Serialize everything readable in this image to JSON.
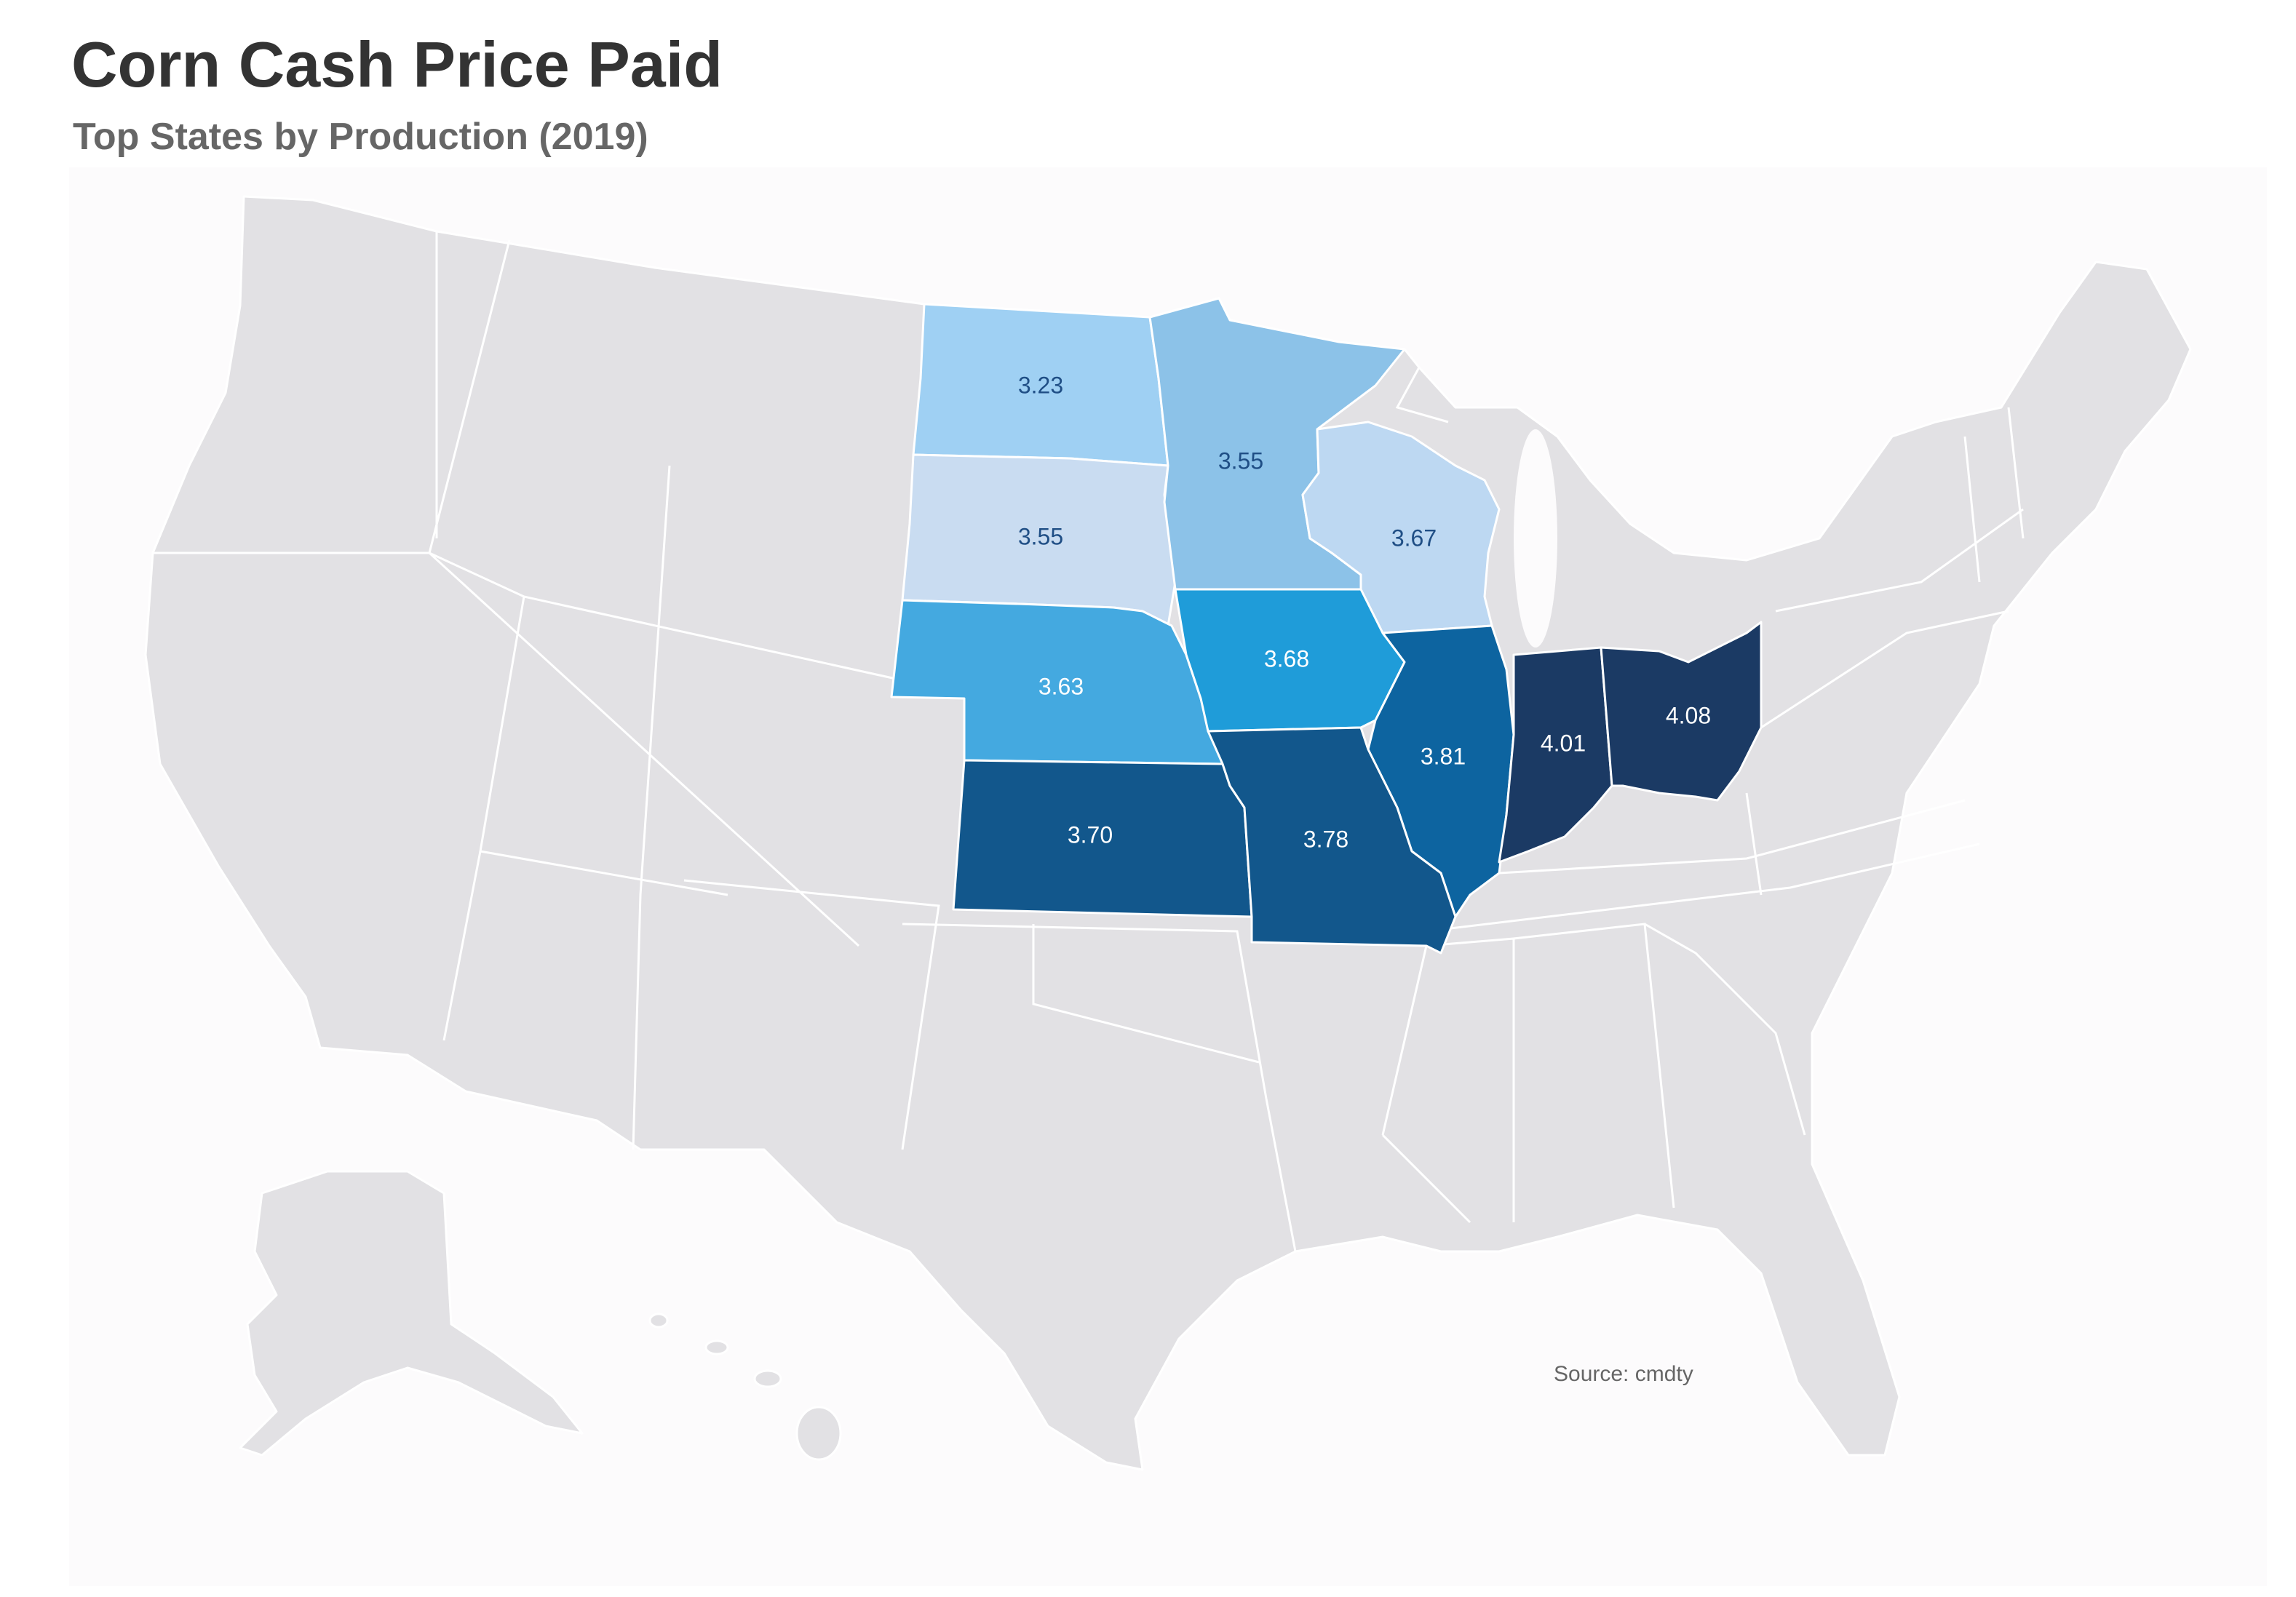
{
  "header": {
    "title": "Corn Cash Price Paid",
    "subtitle": "Top States by Production (2019)"
  },
  "footer": {
    "source": "Source: cmdty"
  },
  "colors": {
    "land": "#e2e1e4",
    "border": "#ffffff",
    "label_dark": "#1f4e85",
    "label_light": "#ffffff"
  },
  "states": [
    {
      "name": "North Dakota",
      "value": "3.23",
      "color": "#9fd0f3"
    },
    {
      "name": "South Dakota",
      "value": "3.55",
      "color": "#c9dcf1"
    },
    {
      "name": "Minnesota",
      "value": "3.55",
      "color": "#8cc2e8"
    },
    {
      "name": "Wisconsin",
      "value": "3.67",
      "color": "#bdd8f2"
    },
    {
      "name": "Nebraska",
      "value": "3.63",
      "color": "#44a9e0"
    },
    {
      "name": "Iowa",
      "value": "3.68",
      "color": "#1f9cd9"
    },
    {
      "name": "Illinois",
      "value": "3.81",
      "color": "#0d64a0"
    },
    {
      "name": "Kansas",
      "value": "3.70",
      "color": "#12578c"
    },
    {
      "name": "Missouri",
      "value": "3.78",
      "color": "#12578c"
    },
    {
      "name": "Indiana",
      "value": "4.01",
      "color": "#1b3a64"
    },
    {
      "name": "Ohio",
      "value": "4.08",
      "color": "#1b3a64"
    }
  ]
}
